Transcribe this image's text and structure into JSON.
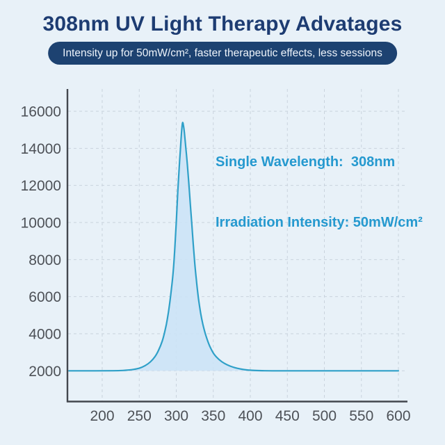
{
  "header": {
    "title": "308nm UV Light Therapy Advatages",
    "subtitle": "Intensity up for 50mW/cm², faster therapeutic effects, less sessions"
  },
  "chart": {
    "annotation": {
      "line1": "Single Wavelength:  308nm",
      "line2": "Irradiation Intensity: 50mW/cm²"
    }
  },
  "chart_data": {
    "type": "area",
    "title": "",
    "xlabel": "",
    "ylabel": "",
    "x_ticks": [
      200,
      250,
      300,
      350,
      400,
      450,
      500,
      550,
      600
    ],
    "y_ticks": [
      2000,
      4000,
      6000,
      8000,
      10000,
      12000,
      14000,
      16000
    ],
    "xlim": [
      153,
      612
    ],
    "ylim": [
      300,
      17200
    ],
    "grid": "dashed",
    "legend": "none",
    "baseline": 2000,
    "peak": {
      "wavelength_nm": 308,
      "intensity": 15380
    },
    "series": [
      {
        "name": "uv-intensity-spectrum",
        "x": [
          155,
          190,
          215,
          228,
          240,
          250,
          258,
          265,
          271,
          276,
          281,
          285,
          288,
          291,
          294,
          296,
          298,
          300,
          302,
          304,
          305.5,
          306.5,
          307.5,
          308.5,
          309.5,
          311,
          313,
          315,
          317,
          319,
          321,
          323,
          325,
          327,
          330,
          333,
          336,
          340,
          345,
          351,
          358,
          365,
          373,
          382,
          392,
          403,
          416,
          430,
          450,
          490,
          540,
          600
        ],
        "y": [
          2000,
          2000,
          2005,
          2020,
          2060,
          2140,
          2280,
          2480,
          2750,
          3100,
          3600,
          4200,
          4800,
          5600,
          6600,
          7400,
          8600,
          10000,
          11600,
          13000,
          13900,
          14500,
          15050,
          15380,
          15280,
          14850,
          14000,
          13100,
          12100,
          11000,
          9900,
          8800,
          7800,
          6950,
          5900,
          5100,
          4500,
          3900,
          3350,
          2900,
          2600,
          2400,
          2250,
          2140,
          2065,
          2025,
          2008,
          2001,
          2000,
          2000,
          2000,
          2000
        ]
      }
    ]
  },
  "colors": {
    "background": "#e8f1f8",
    "title_text": "#1d3c72",
    "banner_bg": "#1d4271",
    "banner_text": "#eef4fb",
    "annotation_text": "#2599cf",
    "curve_stroke": "#2fa0c8",
    "curve_fill": "#cbe2f6",
    "grid_line": "#c9d3dd",
    "axis_line": "#43474e",
    "tick_text": "#4d5157"
  }
}
